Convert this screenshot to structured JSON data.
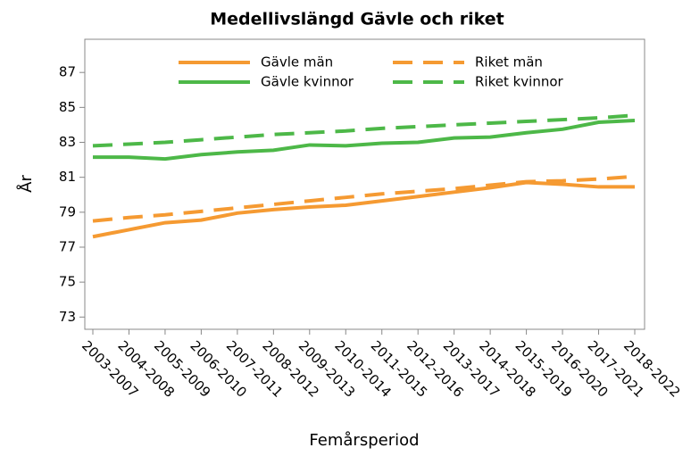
{
  "chart_data": {
    "type": "line",
    "title": "Medellivslängd Gävle och riket",
    "xlabel": "Femårsperiod",
    "ylabel": "År",
    "categories": [
      "2003-2007",
      "2004-2008",
      "2005-2009",
      "2006-2010",
      "2007-2011",
      "2008-2012",
      "2009-2013",
      "2010-2014",
      "2011-2015",
      "2012-2016",
      "2013-2017",
      "2014-2018",
      "2015-2019",
      "2016-2020",
      "2017-2021",
      "2018-2022"
    ],
    "series": [
      {
        "name": "Gävle män",
        "color": "#f59a32",
        "dash": false,
        "values": [
          77.6,
          78.0,
          78.4,
          78.55,
          78.95,
          79.15,
          79.3,
          79.4,
          79.65,
          79.9,
          80.15,
          80.4,
          80.7,
          80.6,
          80.45,
          80.45
        ]
      },
      {
        "name": "Riket män",
        "color": "#f59a32",
        "dash": true,
        "values": [
          78.5,
          78.7,
          78.85,
          79.05,
          79.25,
          79.45,
          79.65,
          79.85,
          80.05,
          80.2,
          80.35,
          80.55,
          80.75,
          80.8,
          80.9,
          81.05
        ]
      },
      {
        "name": "Gävle kvinnor",
        "color": "#4db848",
        "dash": false,
        "values": [
          82.15,
          82.15,
          82.05,
          82.3,
          82.45,
          82.55,
          82.85,
          82.8,
          82.95,
          83.0,
          83.25,
          83.3,
          83.55,
          83.75,
          84.15,
          84.25
        ]
      },
      {
        "name": "Riket kvinnor",
        "color": "#4db848",
        "dash": true,
        "values": [
          82.8,
          82.9,
          83.0,
          83.15,
          83.3,
          83.45,
          83.55,
          83.65,
          83.8,
          83.9,
          84.0,
          84.1,
          84.2,
          84.3,
          84.4,
          84.55
        ]
      }
    ],
    "ylim": [
      72.3,
      88.9
    ],
    "yticks": [
      73,
      75,
      77,
      79,
      81,
      83,
      85,
      87
    ],
    "grid": false,
    "legend": "top"
  }
}
